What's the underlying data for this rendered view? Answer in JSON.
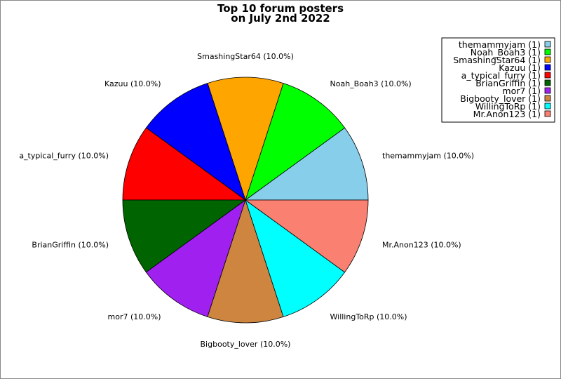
{
  "chart_data": {
    "type": "pie",
    "title_lines": [
      "Top 10 forum posters",
      "on July 2nd 2022"
    ],
    "slices": [
      {
        "name": "themammyjam",
        "value": 1,
        "percent_label": "themammyjam (10.0%)",
        "legend_label": "themammyjam (1)",
        "color": "#87CEEB"
      },
      {
        "name": "Noah_Boah3",
        "value": 1,
        "percent_label": "Noah_Boah3 (10.0%)",
        "legend_label": "Noah_Boah3 (1)",
        "color": "#00FF00"
      },
      {
        "name": "SmashingStar64",
        "value": 1,
        "percent_label": "SmashingStar64 (10.0%)",
        "legend_label": "SmashingStar64 (1)",
        "color": "#FFA500"
      },
      {
        "name": "Kazuu",
        "value": 1,
        "percent_label": "Kazuu (10.0%)",
        "legend_label": "Kazuu (1)",
        "color": "#0000FF"
      },
      {
        "name": "a_typical_furry",
        "value": 1,
        "percent_label": "a_typical_furry (10.0%)",
        "legend_label": "a_typical_furry (1)",
        "color": "#FF0000"
      },
      {
        "name": "BrianGriffin",
        "value": 1,
        "percent_label": "BrianGriffin (10.0%)",
        "legend_label": "BrianGriffin (1)",
        "color": "#006400"
      },
      {
        "name": "mor7",
        "value": 1,
        "percent_label": "mor7 (10.0%)",
        "legend_label": "mor7 (1)",
        "color": "#A020F0"
      },
      {
        "name": "Bigbooty_lover",
        "value": 1,
        "percent_label": "Bigbooty_lover (10.0%)",
        "legend_label": "Bigbooty_lover (1)",
        "color": "#CD853F"
      },
      {
        "name": "WillingToRp",
        "value": 1,
        "percent_label": "WillingToRp (10.0%)",
        "legend_label": "WillingToRp (1)",
        "color": "#00FFFF"
      },
      {
        "name": "Mr.Anon123",
        "value": 1,
        "percent_label": "Mr.Anon123 (10.0%)",
        "legend_label": "Mr.Anon123 (1)",
        "color": "#FA8072"
      }
    ],
    "start_angle": "east",
    "direction": "counterclockwise",
    "legend_position": "top-right"
  }
}
